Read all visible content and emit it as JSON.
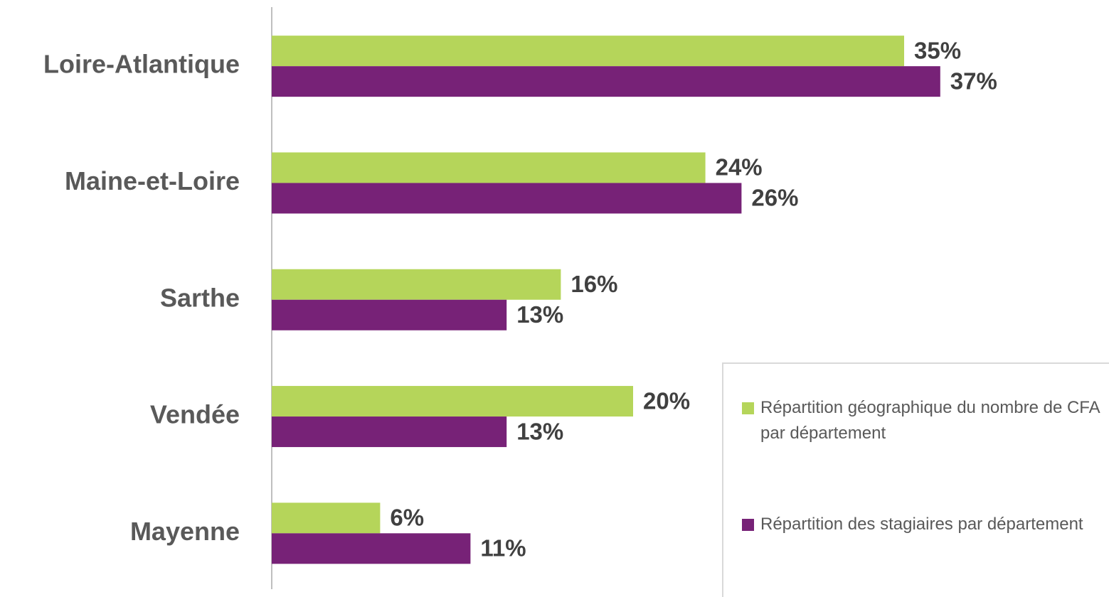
{
  "chart_data": {
    "type": "bar",
    "orientation": "horizontal",
    "categories": [
      "Loire-Atlantique",
      "Maine-et-Loire",
      "Sarthe",
      "Vendée",
      "Mayenne"
    ],
    "series": [
      {
        "name": "Répartition géographique du nombre de CFA par département",
        "color": "#b5d55a",
        "values": [
          35,
          24,
          16,
          20,
          6
        ],
        "value_labels": [
          "35%",
          "24%",
          "16%",
          "20%",
          "6%"
        ]
      },
      {
        "name": "Répartition des stagiaires par département",
        "color": "#772277",
        "values": [
          37,
          26,
          13,
          13,
          11
        ],
        "value_labels": [
          "37%",
          "26%",
          "13%",
          "13%",
          "11%"
        ]
      }
    ],
    "xlim": [
      0,
      45
    ],
    "legend": "right"
  }
}
